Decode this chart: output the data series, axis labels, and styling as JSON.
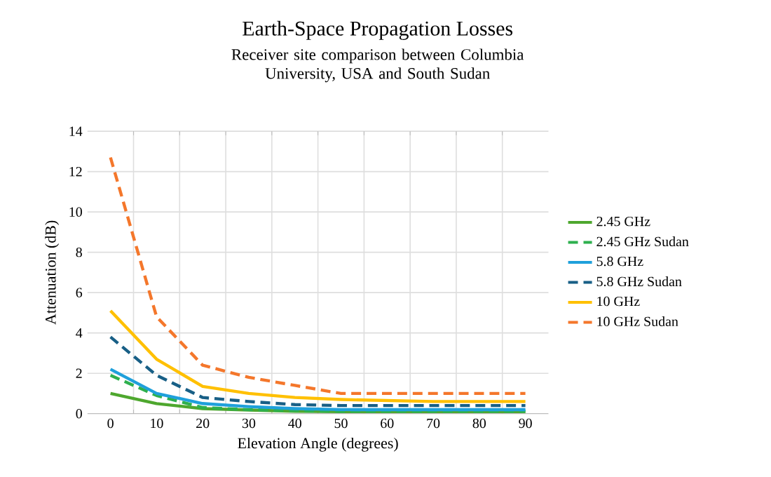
{
  "chart_data": {
    "type": "line",
    "title": "Earth-Space Propagation Losses",
    "subtitle": "Receiver site comparison between Columbia University, USA and South Sudan",
    "xlabel": "Elevation Angle (degrees)",
    "ylabel": "Attenuation (dB)",
    "categories": [
      "0",
      "10",
      "20",
      "30",
      "40",
      "50",
      "60",
      "70",
      "80",
      "90"
    ],
    "series": [
      {
        "name": "2.45 GHz",
        "color": "#4ea72e",
        "line_style": "solid",
        "values": [
          1.0,
          0.5,
          0.25,
          0.18,
          0.12,
          0.1,
          0.1,
          0.1,
          0.1,
          0.1
        ]
      },
      {
        "name": "2.45 GHz Sudan",
        "color": "#2eb04e",
        "line_style": "dashed",
        "values": [
          1.9,
          0.9,
          0.3,
          0.2,
          0.15,
          0.12,
          0.12,
          0.12,
          0.12,
          0.12
        ]
      },
      {
        "name": "5.8 GHz",
        "color": "#1fa0db",
        "line_style": "solid",
        "values": [
          2.2,
          1.0,
          0.5,
          0.35,
          0.25,
          0.2,
          0.2,
          0.2,
          0.2,
          0.2
        ]
      },
      {
        "name": "5.8 GHz Sudan",
        "color": "#185f86",
        "line_style": "dashed",
        "values": [
          3.8,
          1.9,
          0.8,
          0.6,
          0.45,
          0.4,
          0.4,
          0.4,
          0.4,
          0.4
        ]
      },
      {
        "name": "10 GHz",
        "color": "#ffc000",
        "line_style": "solid",
        "values": [
          5.1,
          2.7,
          1.35,
          1.0,
          0.8,
          0.7,
          0.65,
          0.6,
          0.6,
          0.6
        ]
      },
      {
        "name": "10 GHz Sudan",
        "color": "#f4772b",
        "line_style": "dashed",
        "values": [
          12.7,
          4.8,
          2.4,
          1.8,
          1.4,
          1.0,
          1.0,
          1.0,
          1.0,
          1.0
        ]
      }
    ],
    "ylim": [
      0,
      14
    ],
    "yticks": [
      0,
      2,
      4,
      6,
      8,
      10,
      12,
      14
    ],
    "grid": true,
    "legend": "right",
    "marker": "none"
  }
}
